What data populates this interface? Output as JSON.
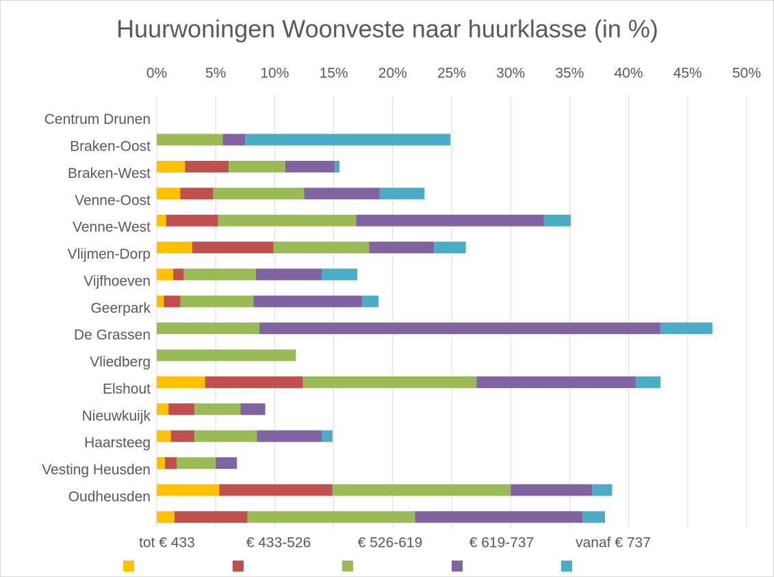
{
  "chart_data": {
    "type": "stacked-barh",
    "title": "Huurwoningen Woonveste naar huurklasse (in %)",
    "categories": [
      "Centrum Drunen",
      "Braken-Oost",
      "Braken-West",
      "Venne-Oost",
      "Venne-West",
      "Vlijmen-Dorp",
      "Vijfhoeven",
      "Geerpark",
      "De Grassen",
      "Vliedberg",
      "Elshout",
      "Nieuwkuijk",
      "Haarsteeg",
      "Vesting Heusden",
      "Oudheusden",
      null
    ],
    "series": [
      {
        "name": "tot € 433",
        "color": "#FFC000",
        "values": [
          null,
          0,
          2.4,
          2.0,
          0.8,
          3.0,
          1.4,
          0.6,
          0,
          0,
          4.1,
          1.0,
          1.2,
          0.7,
          5.3,
          1.5
        ]
      },
      {
        "name": "€ 433-526",
        "color": "#C0504D",
        "values": [
          null,
          0,
          3.7,
          2.8,
          4.4,
          6.9,
          0.9,
          1.4,
          0,
          0,
          8.3,
          2.2,
          2.0,
          1.0,
          9.6,
          6.2
        ]
      },
      {
        "name": "€ 526-619",
        "color": "#9BBB59",
        "values": [
          null,
          5.6,
          4.8,
          7.7,
          11.7,
          8.1,
          6.1,
          6.2,
          8.7,
          11.8,
          14.7,
          3.9,
          5.3,
          3.3,
          15.1,
          14.2
        ]
      },
      {
        "name": "€ 619-737",
        "color": "#8064A2",
        "values": [
          null,
          1.9,
          4.2,
          6.4,
          15.9,
          5.5,
          5.6,
          9.2,
          34.0,
          0,
          13.5,
          2.1,
          5.5,
          1.8,
          6.9,
          14.2
        ]
      },
      {
        "name": "vanaf € 737",
        "color": "#4BACC6",
        "values": [
          null,
          17.4,
          0.4,
          3.8,
          2.3,
          2.7,
          3.0,
          1.4,
          4.4,
          0,
          2.1,
          0,
          0.9,
          0,
          1.7,
          1.9
        ]
      }
    ],
    "xlim": [
      0,
      50
    ],
    "xticks": [
      {
        "value": 0,
        "label": "0%"
      },
      {
        "value": 5,
        "label": "5%"
      },
      {
        "value": 10,
        "label": "10%"
      },
      {
        "value": 15,
        "label": "15%"
      },
      {
        "value": 20,
        "label": "20%"
      },
      {
        "value": 25,
        "label": "25%"
      },
      {
        "value": 30,
        "label": "30%"
      },
      {
        "value": 35,
        "label": "35%"
      },
      {
        "value": 40,
        "label": "40%"
      },
      {
        "value": 45,
        "label": "45%"
      },
      {
        "value": 50,
        "label": "50%"
      }
    ],
    "grid": true
  }
}
